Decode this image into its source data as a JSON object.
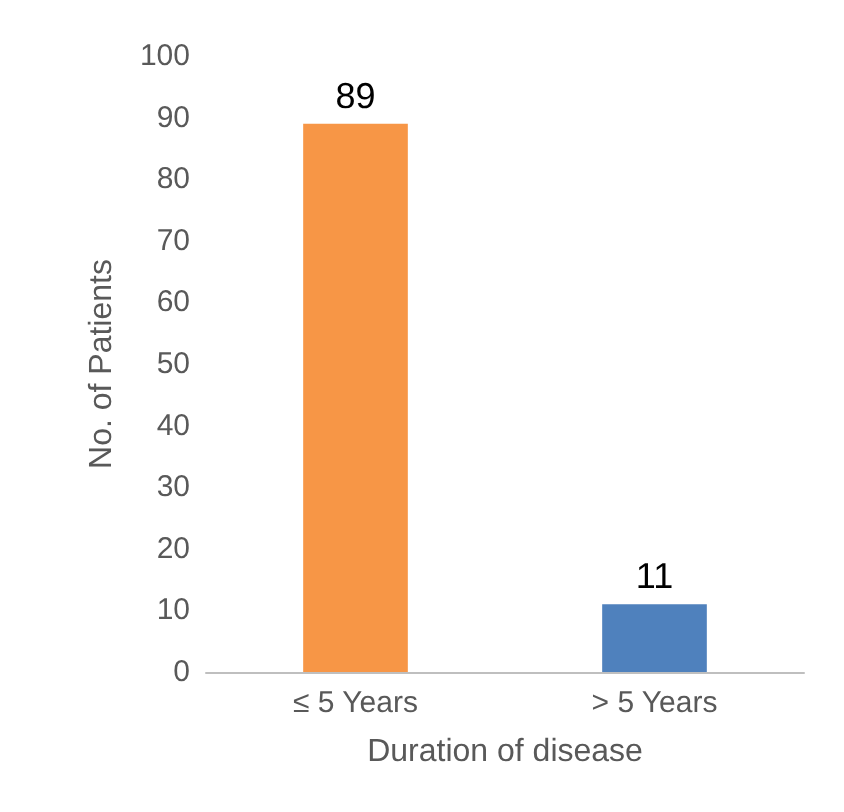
{
  "chart_data": {
    "type": "bar",
    "xlabel": "Duration of disease",
    "ylabel": "No. of Patients",
    "categories": [
      "≤ 5 Years",
      "> 5 Years"
    ],
    "values": [
      89,
      11
    ],
    "colors": [
      "#f79646",
      "#4f81bd"
    ],
    "ylim": [
      0,
      100
    ],
    "yticks": [
      0,
      10,
      20,
      30,
      40,
      50,
      60,
      70,
      80,
      90,
      100
    ],
    "grid": false,
    "data_labels": true
  }
}
